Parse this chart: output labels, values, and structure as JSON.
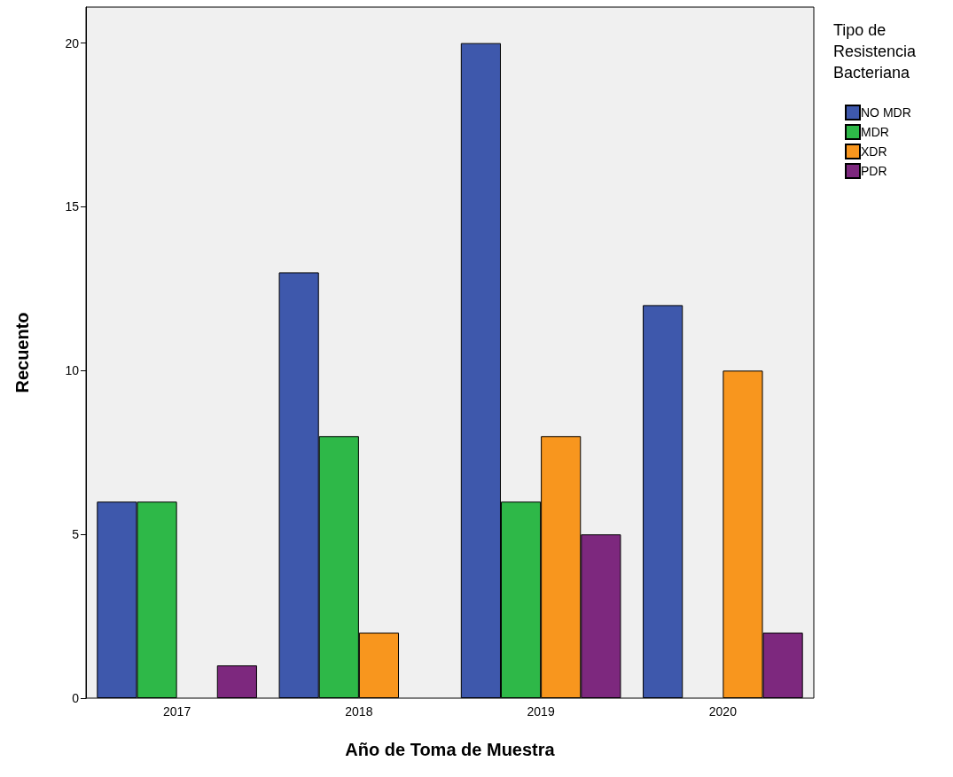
{
  "chart_data": {
    "type": "bar",
    "xlabel": "Año de Toma de Muestra",
    "ylabel": "Recuento",
    "legend_title": "Tipo de Resistencia Bacteriana",
    "categories": [
      "2017",
      "2018",
      "2019",
      "2020"
    ],
    "series": [
      {
        "name": "NO MDR",
        "color": "#3e58ac",
        "values": [
          6,
          13,
          20,
          12
        ]
      },
      {
        "name": "MDR",
        "color": "#2eb848",
        "values": [
          6,
          8,
          6,
          null
        ]
      },
      {
        "name": "XDR",
        "color": "#f8961e",
        "values": [
          null,
          2,
          8,
          10
        ]
      },
      {
        "name": "PDR",
        "color": "#7d287e",
        "values": [
          1,
          null,
          5,
          2
        ]
      }
    ],
    "ylim": [
      0,
      21.1
    ],
    "yticks": [
      0,
      5,
      10,
      15,
      20
    ],
    "grid": false,
    "legend": "top right"
  }
}
